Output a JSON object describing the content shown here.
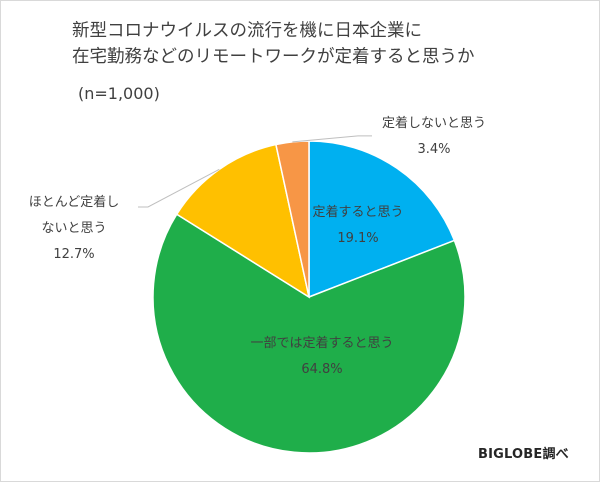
{
  "title_lines": [
    "新型コロナウイルスの流行を機に日本企業に",
    "在宅勤務などのリモートワークが定着すると思うか"
  ],
  "note": "(n=1,000)",
  "source": "BIGLOBE調べ",
  "chart_data": {
    "type": "pie",
    "slices": [
      {
        "label_lines": [
          "定着すると思う"
        ],
        "value": 19.1,
        "value_label": "19.1%",
        "color": "#00B0F0"
      },
      {
        "label_lines": [
          "一部では定着すると思う"
        ],
        "value": 64.8,
        "value_label": "64.8%",
        "color": "#1FAE4A"
      },
      {
        "label_lines": [
          "ほとんど定着し",
          "ないと思う"
        ],
        "value": 12.7,
        "value_label": "12.7%",
        "color": "#FFC000"
      },
      {
        "label_lines": [
          "定着しないと思う"
        ],
        "value": 3.4,
        "value_label": "3.4%",
        "color": "#F79646"
      }
    ]
  }
}
